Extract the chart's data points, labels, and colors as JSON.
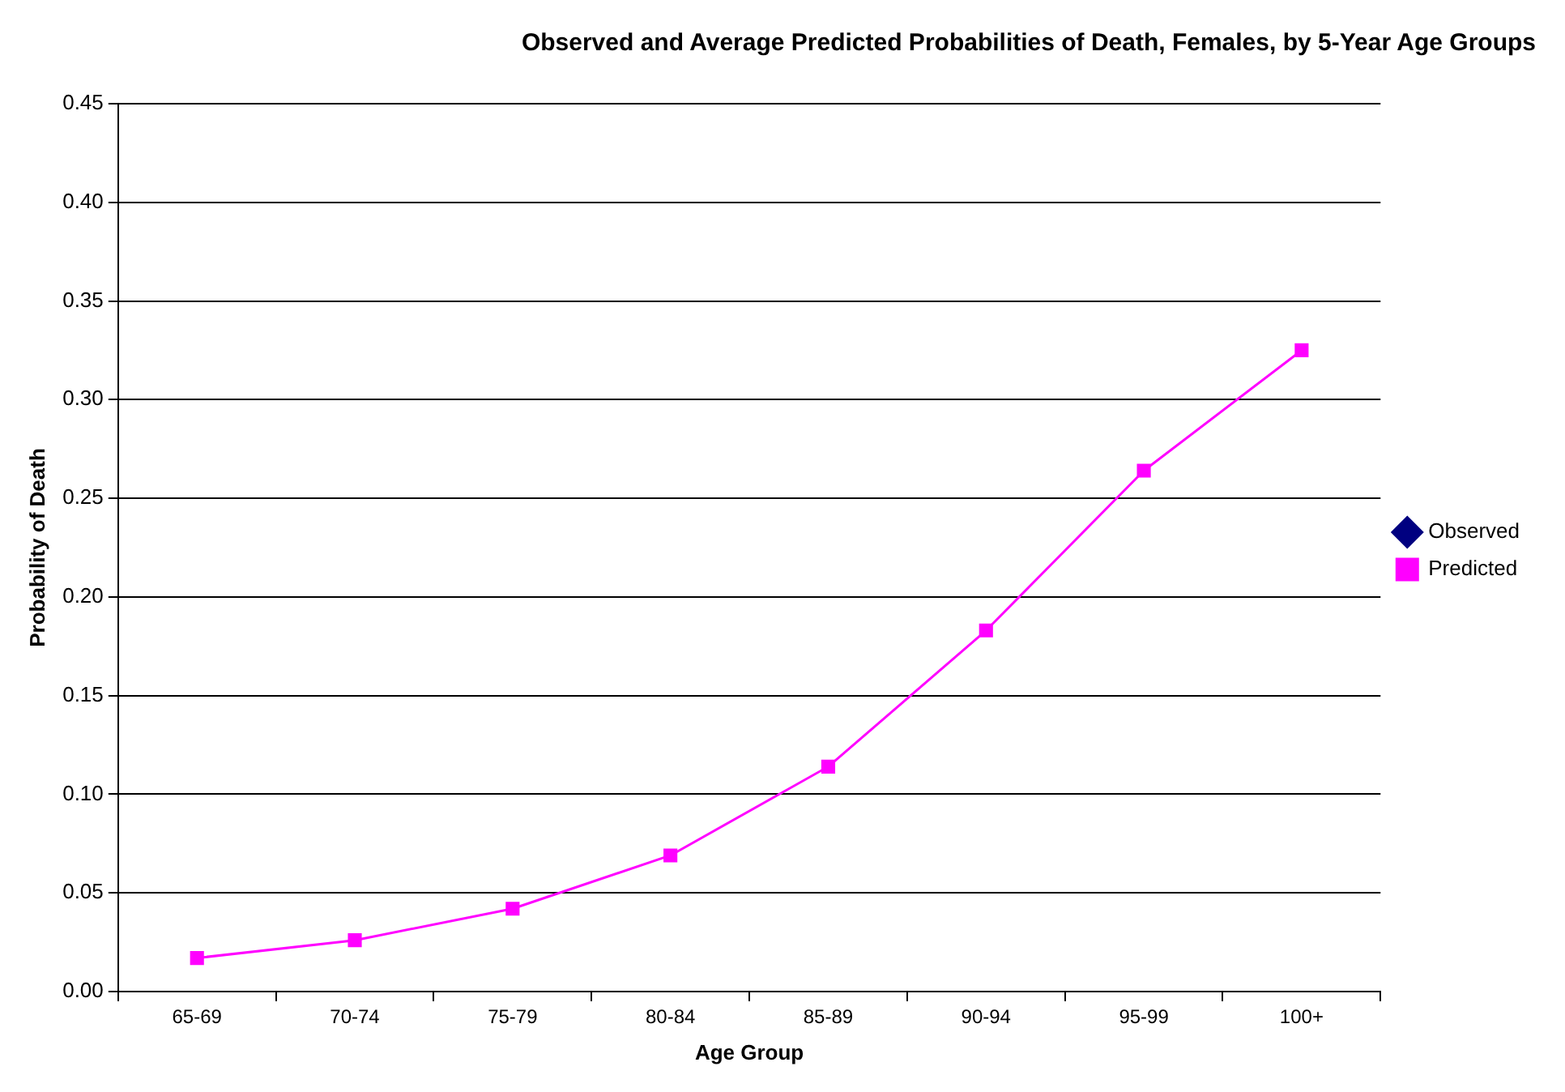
{
  "chart_data": {
    "type": "line",
    "title": "Observed and Average Predicted Probabilities of Death, Females, by 5-Year Age Groups",
    "xlabel": "Age Group",
    "ylabel": "Probability of Death",
    "categories": [
      "65-69",
      "70-74",
      "75-79",
      "80-84",
      "85-89",
      "90-94",
      "95-99",
      "100+"
    ],
    "series": [
      {
        "name": "Observed",
        "color": "#000080",
        "marker": "diamond",
        "values": [
          null,
          null,
          null,
          null,
          null,
          null,
          null,
          null
        ]
      },
      {
        "name": "Predicted",
        "color": "#ff00ff",
        "marker": "square",
        "values": [
          0.017,
          0.026,
          0.042,
          0.069,
          0.114,
          0.183,
          0.264,
          0.325
        ]
      }
    ],
    "ylim": [
      0,
      0.45
    ],
    "yticks": [
      {
        "value": 0,
        "label": "0.00"
      },
      {
        "value": 0.05,
        "label": "0.05"
      },
      {
        "value": 0.1,
        "label": "0.10"
      },
      {
        "value": 0.15,
        "label": "0.15"
      },
      {
        "value": 0.2,
        "label": "0.20"
      },
      {
        "value": 0.25,
        "label": "0.25"
      },
      {
        "value": 0.3,
        "label": "0.30"
      },
      {
        "value": 0.35,
        "label": "0.35"
      },
      {
        "value": 0.4,
        "label": "0.40"
      },
      {
        "value": 0.45,
        "label": "0.45"
      }
    ],
    "grid": "y",
    "legend": "right",
    "line_style": "solid"
  }
}
